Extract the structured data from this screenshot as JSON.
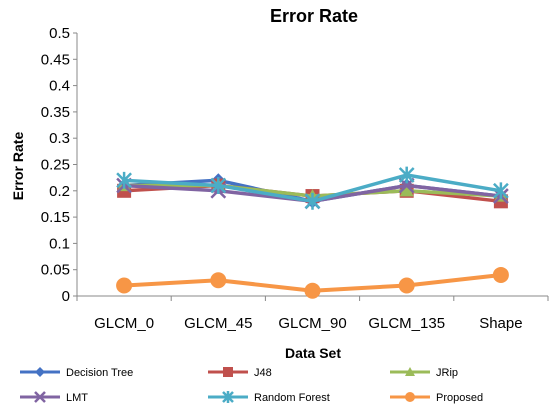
{
  "chart_data": {
    "type": "line",
    "title": "Error Rate",
    "xlabel": "Data Set",
    "ylabel": "Error Rate",
    "categories": [
      "GLCM_0",
      "GLCM_45",
      "GLCM_90",
      "GLCM_135",
      "Shape"
    ],
    "ylim": [
      0,
      0.5
    ],
    "yticks": [
      "0",
      "0.05",
      "0.1",
      "0.15",
      "0.2",
      "0.25",
      "0.3",
      "0.35",
      "0.4",
      "0.45",
      "0.5"
    ],
    "grid": false,
    "legend_position": "bottom",
    "series": [
      {
        "name": "Decision Tree",
        "color": "#4472C4",
        "marker": "diamond",
        "values": [
          0.21,
          0.22,
          0.18,
          0.21,
          0.19
        ]
      },
      {
        "name": "J48",
        "color": "#C0504D",
        "marker": "square",
        "values": [
          0.2,
          0.21,
          0.19,
          0.2,
          0.18
        ]
      },
      {
        "name": "JRip",
        "color": "#9BBB59",
        "marker": "triangle",
        "values": [
          0.21,
          0.21,
          0.19,
          0.2,
          0.19
        ]
      },
      {
        "name": "LMT",
        "color": "#8064A2",
        "marker": "x",
        "values": [
          0.21,
          0.2,
          0.18,
          0.21,
          0.19
        ]
      },
      {
        "name": "Random Forest",
        "color": "#4BACC6",
        "marker": "star",
        "values": [
          0.22,
          0.21,
          0.18,
          0.23,
          0.2
        ]
      },
      {
        "name": "Proposed",
        "color": "#F79646",
        "marker": "circle",
        "values": [
          0.02,
          0.03,
          0.01,
          0.02,
          0.04
        ]
      }
    ]
  }
}
